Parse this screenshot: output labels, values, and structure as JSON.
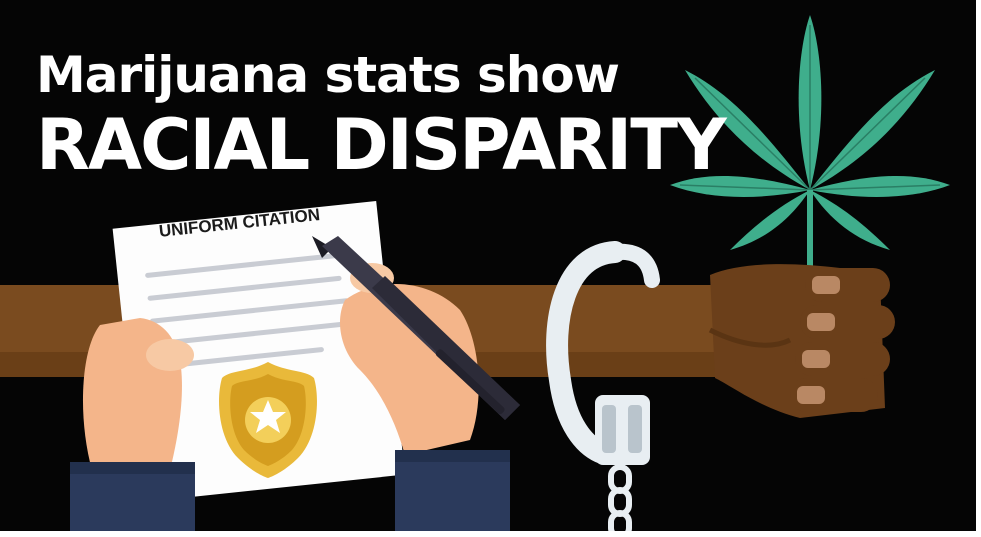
{
  "headline": {
    "line1": "Marijuana stats show",
    "line2": "RACIAL DISPARITY"
  },
  "citation": {
    "title": "UNIFORM CITATION"
  },
  "colors": {
    "background": "#050505",
    "headline_text": "#ffffff",
    "arm": "#7a4b1f",
    "hand": "#6b3f1a",
    "leaf": "#3fae8c",
    "skin_officer": "#f4b58a",
    "sleeve": "#2b3a5c",
    "badge": "#e9b93a",
    "pen": "#3b3a4a",
    "handcuff": "#e8eef2"
  },
  "icons": [
    "cannabis-leaf-icon",
    "handcuff-icon",
    "police-badge-icon",
    "pen-icon",
    "chain-icon"
  ]
}
